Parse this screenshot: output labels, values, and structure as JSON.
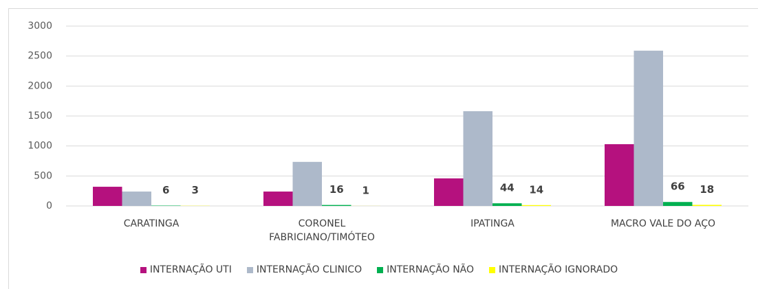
{
  "chart_data": {
    "type": "bar",
    "categories": [
      "CARATINGA",
      "CORONEL FABRICIANO/TIMÓTEO",
      "IPATINGA",
      "MACRO VALE DO AÇO"
    ],
    "series": [
      {
        "name": "INTERNAÇÃO UTI",
        "color": "#b5117e",
        "values": [
          320,
          240,
          460,
          1030
        ]
      },
      {
        "name": "INTERNAÇÃO CLINICO",
        "color": "#adb9ca",
        "values": [
          240,
          735,
          1580,
          2590
        ]
      },
      {
        "name": "INTERNAÇÃO NÃO",
        "color": "#00b050",
        "values": [
          6,
          16,
          44,
          66
        ],
        "show_labels": true
      },
      {
        "name": "INTERNAÇÃO IGNORADO",
        "color": "#ffff00",
        "values": [
          3,
          1,
          14,
          18
        ],
        "show_labels": true
      }
    ],
    "ylim": [
      0,
      3000
    ],
    "yticks": [
      0,
      500,
      1000,
      1500,
      2000,
      2500,
      3000
    ],
    "grid": true
  }
}
